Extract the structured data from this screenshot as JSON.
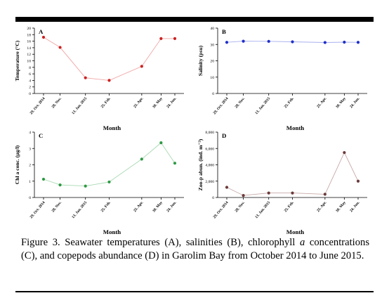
{
  "caption": {
    "part1": "Figure 3. Seawater temperatures (A), salinities (B), chlorophyll ",
    "italic": "a",
    "part2": " concentrations (C), and copepods abundance (D) in Garolim Bay from October 2014 to June 2015."
  },
  "chart_data": [
    {
      "type": "line",
      "panel_label": "A",
      "ylabel": "Temperature (°C)",
      "xlabel": "Month",
      "ylim": [
        0,
        20
      ],
      "yticks": [
        "0",
        "2",
        "4",
        "6",
        "8",
        "10",
        "12",
        "14",
        "16",
        "18",
        "20"
      ],
      "xticks": [
        "29. Oct. 2014",
        "28. Nov.",
        "13. Jan. 2015",
        "25. Feb.",
        "25. Apr.",
        "30. May",
        "24. Jun."
      ],
      "x": [
        "2014-10-29",
        "2014-11-28",
        "2015-01-13",
        "2015-02-25",
        "2015-04-25",
        "2015-05-30",
        "2015-06-24"
      ],
      "values": [
        17.2,
        14.1,
        4.8,
        4.0,
        8.3,
        16.8,
        16.8
      ],
      "color": "#cc2222",
      "line_color": "#f0a6a6"
    },
    {
      "type": "line",
      "panel_label": "B",
      "ylabel": "Salinity (psu)",
      "xlabel": "Month",
      "ylim": [
        0,
        40
      ],
      "yticks": [
        "0",
        "10",
        "20",
        "30",
        "40"
      ],
      "xticks": [
        "29. Oct. 2014",
        "28. Nov.",
        "13. Jan. 2015",
        "25. Feb.",
        "25. Apr.",
        "30. May",
        "24. Jun."
      ],
      "x": [
        "2014-10-29",
        "2014-11-28",
        "2015-01-13",
        "2015-02-25",
        "2015-04-25",
        "2015-05-30",
        "2015-06-24"
      ],
      "values": [
        31.3,
        32.0,
        31.9,
        31.6,
        31.2,
        31.4,
        31.3
      ],
      "color": "#1f2fc9",
      "line_color": "#a7b0ee"
    },
    {
      "type": "line",
      "panel_label": "C",
      "ylabel": "Chl a conc. (µg/l)",
      "xlabel": "Month",
      "ylim": [
        0,
        4
      ],
      "yticks": [
        "0",
        "1",
        "2",
        "3",
        "4"
      ],
      "xticks": [
        "29. Oct. 2014",
        "28. Nov.",
        "13. Jan. 2015",
        "25. Feb.",
        "25. Apr.",
        "30. May",
        "24. Jun."
      ],
      "x": [
        "2014-10-29",
        "2014-11-28",
        "2015-01-13",
        "2015-02-25",
        "2015-04-25",
        "2015-05-30",
        "2015-06-24"
      ],
      "values": [
        1.12,
        0.77,
        0.7,
        0.95,
        2.35,
        3.35,
        2.1
      ],
      "color": "#2e9a44",
      "line_color": "#a9d9b4"
    },
    {
      "type": "line",
      "panel_label": "D",
      "ylabel": "Zoo-p abun. (ind. m⁻³)",
      "xlabel": "Month",
      "ylim": [
        0,
        8000
      ],
      "yticks": [
        "0",
        "2,000",
        "4,000",
        "6,000",
        "8,000"
      ],
      "xticks": [
        "29. Oct. 2014",
        "28. Nov.",
        "13. Jan. 2015",
        "25. Feb.",
        "25. Apr.",
        "30. May",
        "24. Jun."
      ],
      "x": [
        "2014-10-29",
        "2014-11-28",
        "2015-01-13",
        "2015-02-25",
        "2015-04-25",
        "2015-05-30",
        "2015-06-24"
      ],
      "values": [
        1250,
        250,
        550,
        550,
        400,
        5500,
        2000
      ],
      "color": "#6b3a3a",
      "line_color": "#c8a9a9"
    }
  ]
}
